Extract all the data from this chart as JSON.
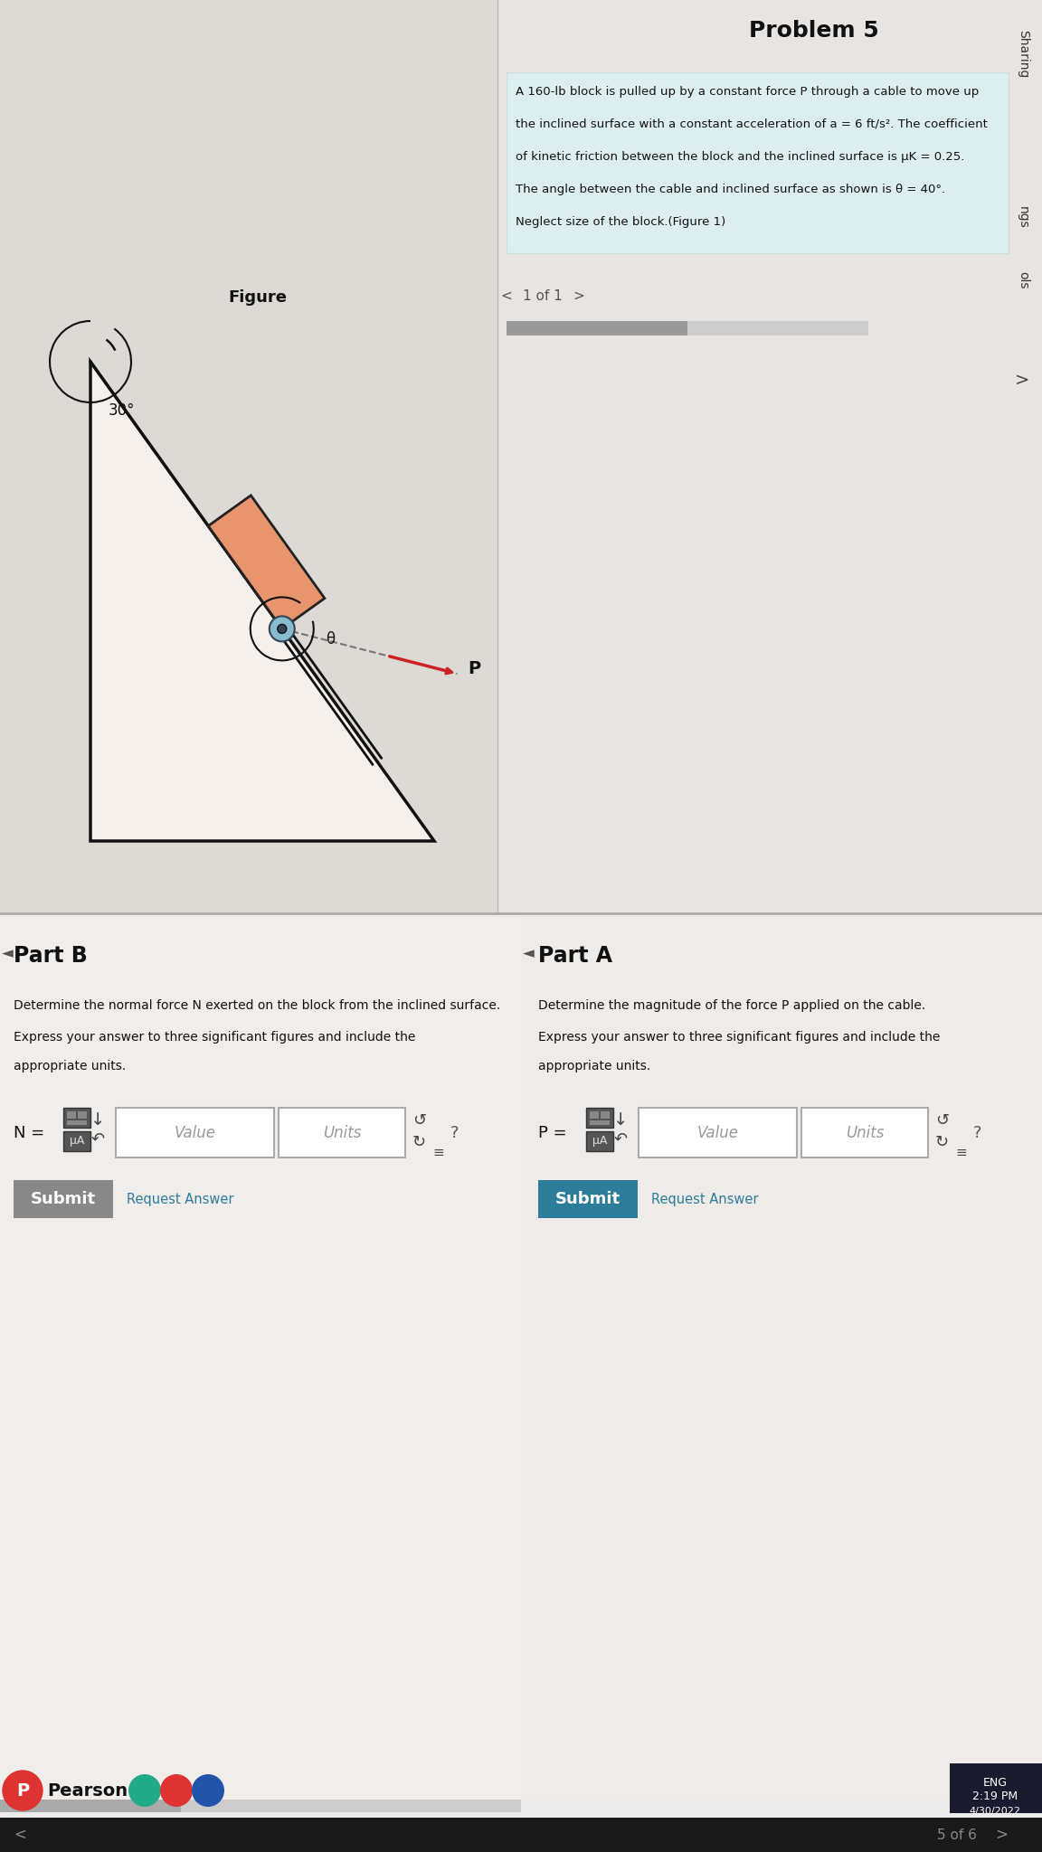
{
  "bg_color": "#d0ccc8",
  "left_top_bg": "#e0dcd8",
  "right_top_bg": "#e8e4e0",
  "problem_panel_bg": "#ddeef0",
  "problem_title": "Problem 5",
  "problem_text_line1": "A 160-lb block is pulled up by a constant force P through a cable to move up",
  "problem_text_line2": "the inclined surface with a constant acceleration of a = 6 ft/s². The coefficient",
  "problem_text_line3": "of kinetic friction between the block and the inclined surface is μK = 0.25.",
  "problem_text_line4": "The angle between the cable and inclined surface as shown is θ = 40°.",
  "problem_text_line5": "Neglect size of the block.(Figure 1)",
  "figure_label": "Figure",
  "angle_label": "30°",
  "theta_label": "θ",
  "P_label": "P",
  "nav_text_fig": "1 of 1",
  "partA_title": "Part A",
  "partA_text1": "Determine the magnitude of the force P applied on the cable.",
  "partA_text2": "Express your answer to three significant figures and include the",
  "partA_text3": "appropriate units.",
  "partA_label": "P =",
  "value_placeholder": "Value",
  "units_placeholder": "Units",
  "muA_label": "μA",
  "submit_btn_color": "#2d7d9a",
  "submit_btn_text": "Submit",
  "request_answer_text": "Request Answer",
  "partB_title": "Part B",
  "partB_text1": "Determine the normal force N exerted on the block from the inclined surface.",
  "partB_text2": "Express your answer to three significant figures and include the",
  "partB_text3": "appropriate units.",
  "partB_label": "N =",
  "pearson_text": "Pearson",
  "page_indicator": "5 of 6",
  "sharing_text": "Sharing",
  "ngs_text": "ngs",
  "ols_text": "ols",
  "block_color": "#e8956d",
  "incline_fill": "#f5f0eb",
  "cable_color": "#111111",
  "arrow_color": "#cc2222",
  "pulley_color_outer": "#88bbcc",
  "pulley_color_inner": "#334455",
  "taskbar_color": "#1a1a2e",
  "time_text": "2:19 PM",
  "date_text": "4/30/2022",
  "eng_text": "ENG"
}
